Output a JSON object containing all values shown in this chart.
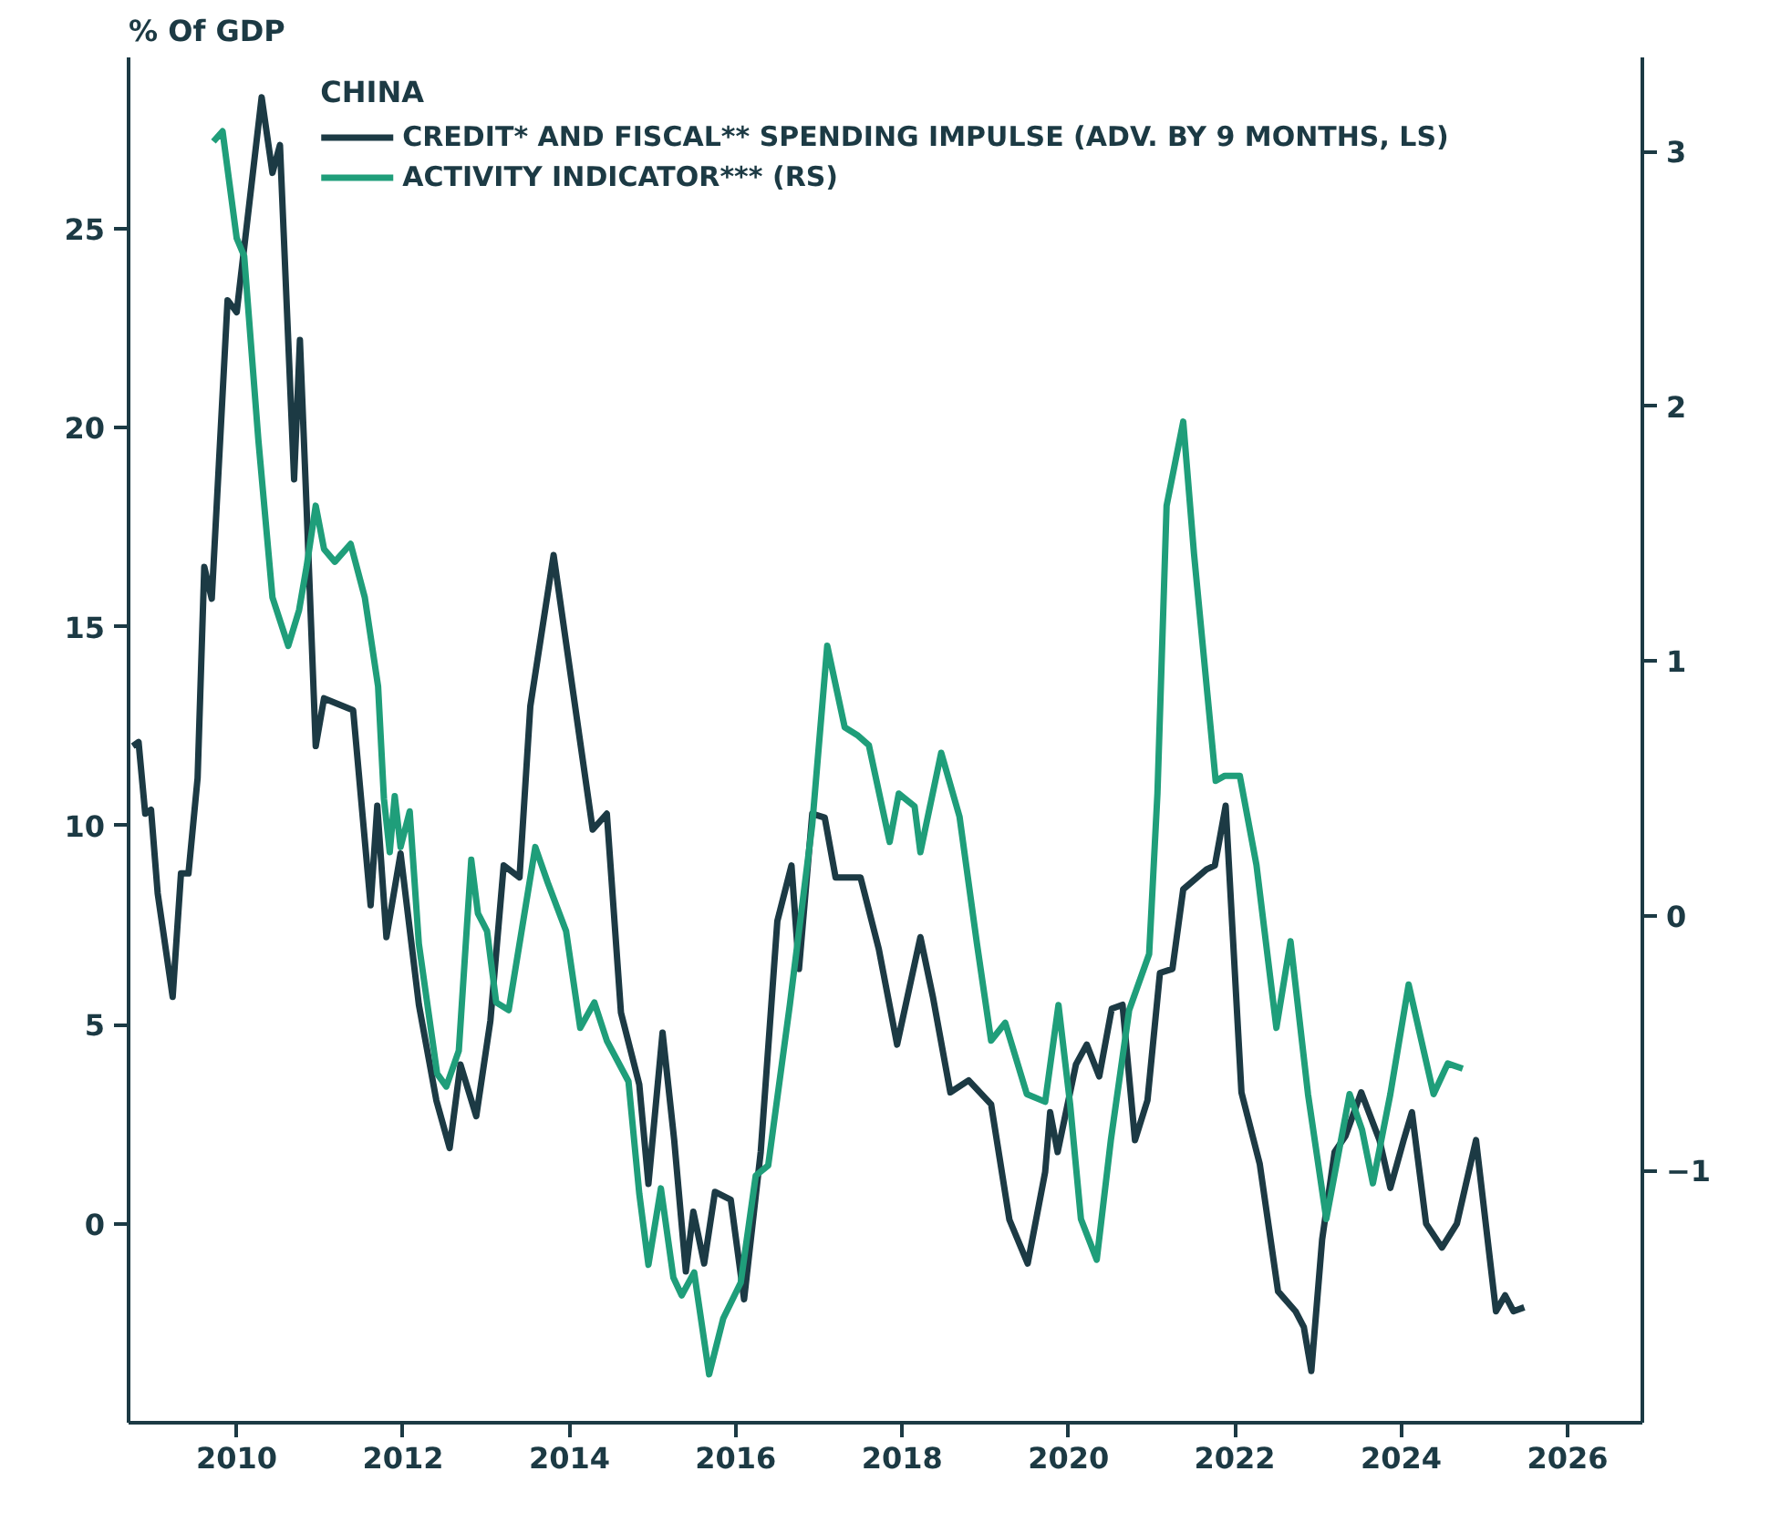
{
  "chart_data": {
    "type": "line",
    "ylabel": "% Of GDP",
    "legend_title": "CHINA",
    "legend": "top",
    "grid": false,
    "marker": "none",
    "line_style": "solid",
    "xlim": [
      2008.7,
      2026.9
    ],
    "xticks": [
      2010,
      2012,
      2014,
      2016,
      2018,
      2020,
      2022,
      2024,
      2026
    ],
    "ylim": [
      -5,
      29.3
    ],
    "yticks": [
      0,
      5,
      10,
      15,
      20,
      25
    ],
    "y2lim": [
      -1.99,
      3.37
    ],
    "y2ticks": [
      -1,
      0,
      1,
      2,
      3
    ],
    "series": [
      {
        "name": "CREDIT* AND FISCAL** SPENDING IMPULSE (ADV. BY 9 MONTHS, LS)",
        "color": "#1c3a44",
        "x": [
          2008.75,
          2008.82,
          2008.9,
          2008.97,
          2009.05,
          2009.23,
          2009.33,
          2009.42,
          2009.53,
          2009.61,
          2009.7,
          2009.89,
          2010.0,
          2010.3,
          2010.43,
          2010.52,
          2010.69,
          2010.76,
          2010.84,
          2010.95,
          2011.05,
          2011.4,
          2011.61,
          2011.69,
          2011.8,
          2011.97,
          2012.19,
          2012.4,
          2012.56,
          2012.69,
          2012.88,
          2013.05,
          2013.21,
          2013.4,
          2013.53,
          2013.81,
          2014.13,
          2014.28,
          2014.45,
          2014.62,
          2014.84,
          2014.95,
          2015.12,
          2015.26,
          2015.4,
          2015.49,
          2015.62,
          2015.75,
          2015.94,
          2016.1,
          2016.3,
          2016.5,
          2016.67,
          2016.76,
          2016.92,
          2017.07,
          2017.2,
          2017.5,
          2017.72,
          2017.94,
          2018.22,
          2018.37,
          2018.58,
          2018.8,
          2019.07,
          2019.29,
          2019.51,
          2019.72,
          2019.78,
          2019.87,
          2020.09,
          2020.22,
          2020.37,
          2020.52,
          2020.65,
          2020.8,
          2020.95,
          2021.1,
          2021.25,
          2021.38,
          2021.66,
          2021.76,
          2021.89,
          2022.08,
          2022.3,
          2022.52,
          2022.73,
          2022.83,
          2022.92,
          2023.05,
          2023.2,
          2023.33,
          2023.52,
          2023.74,
          2023.87,
          2024.03,
          2024.13,
          2024.3,
          2024.49,
          2024.67,
          2024.9,
          2025.14,
          2025.25,
          2025.35,
          2025.48
        ],
        "values": [
          12.0,
          12.1,
          10.3,
          10.4,
          8.3,
          5.7,
          8.8,
          8.8,
          11.2,
          16.5,
          15.7,
          23.2,
          22.9,
          28.3,
          26.4,
          27.1,
          18.7,
          22.2,
          18.0,
          12.0,
          13.2,
          12.9,
          8.0,
          10.5,
          7.2,
          9.3,
          5.5,
          3.1,
          1.9,
          4.0,
          2.7,
          5.1,
          9.0,
          8.7,
          13.0,
          16.8,
          12.1,
          9.9,
          10.3,
          5.3,
          3.5,
          1.0,
          4.8,
          2.1,
          -1.2,
          0.3,
          -1.0,
          0.8,
          0.6,
          -1.9,
          1.8,
          7.6,
          9.0,
          6.4,
          10.3,
          10.2,
          8.7,
          8.7,
          6.9,
          4.5,
          7.2,
          5.7,
          3.3,
          3.6,
          3.0,
          0.1,
          -1.0,
          1.3,
          2.8,
          1.8,
          4.0,
          4.5,
          3.7,
          5.4,
          5.5,
          2.1,
          3.1,
          6.3,
          6.4,
          8.4,
          8.9,
          9.0,
          10.5,
          3.3,
          1.5,
          -1.7,
          -2.2,
          -2.6,
          -3.7,
          -0.4,
          1.8,
          2.2,
          3.3,
          2.1,
          0.9,
          2.1,
          2.8,
          0.0,
          -0.6,
          0.0,
          2.1,
          -2.2,
          -1.8,
          -2.2,
          -2.1
        ]
      },
      {
        "name": "ACTIVITY INDICATOR*** (RS)",
        "color": "#1f9e7a",
        "axis": "y2",
        "x": [
          2009.72,
          2009.83,
          2010.0,
          2010.09,
          2010.26,
          2010.43,
          2010.62,
          2010.75,
          2010.84,
          2010.95,
          2011.05,
          2011.18,
          2011.37,
          2011.54,
          2011.7,
          2011.77,
          2011.84,
          2011.9,
          2011.97,
          2012.08,
          2012.19,
          2012.41,
          2012.52,
          2012.67,
          2012.82,
          2012.9,
          2013.01,
          2013.12,
          2013.27,
          2013.59,
          2013.74,
          2013.96,
          2014.13,
          2014.3,
          2014.45,
          2014.71,
          2014.84,
          2014.95,
          2015.1,
          2015.25,
          2015.35,
          2015.5,
          2015.68,
          2015.85,
          2016.06,
          2016.24,
          2016.39,
          2016.65,
          2016.92,
          2017.1,
          2017.31,
          2017.46,
          2017.6,
          2017.85,
          2017.96,
          2018.15,
          2018.22,
          2018.47,
          2018.69,
          2018.9,
          2019.07,
          2019.24,
          2019.5,
          2019.72,
          2019.88,
          2020.02,
          2020.15,
          2020.34,
          2020.51,
          2020.73,
          2020.97,
          2021.07,
          2021.18,
          2021.38,
          2021.51,
          2021.77,
          2021.88,
          2022.06,
          2022.26,
          2022.5,
          2022.67,
          2022.88,
          2023.1,
          2023.38,
          2023.53,
          2023.66,
          2023.87,
          2024.09,
          2024.39,
          2024.56,
          2024.74
        ],
        "values": [
          3.04,
          3.08,
          2.66,
          2.59,
          1.87,
          1.25,
          1.06,
          1.2,
          1.37,
          1.61,
          1.44,
          1.39,
          1.46,
          1.25,
          0.9,
          0.46,
          0.25,
          0.47,
          0.27,
          0.41,
          -0.11,
          -0.62,
          -0.67,
          -0.53,
          0.22,
          0.01,
          -0.06,
          -0.34,
          -0.37,
          0.27,
          0.13,
          -0.06,
          -0.44,
          -0.34,
          -0.49,
          -0.65,
          -1.09,
          -1.37,
          -1.07,
          -1.42,
          -1.49,
          -1.4,
          -1.8,
          -1.58,
          -1.44,
          -1.02,
          -0.98,
          -0.35,
          0.36,
          1.06,
          0.74,
          0.71,
          0.67,
          0.29,
          0.48,
          0.43,
          0.25,
          0.64,
          0.39,
          -0.11,
          -0.49,
          -0.42,
          -0.7,
          -0.73,
          -0.35,
          -0.74,
          -1.19,
          -1.35,
          -0.88,
          -0.37,
          -0.15,
          0.48,
          1.61,
          1.94,
          1.42,
          0.53,
          0.55,
          0.55,
          0.2,
          -0.44,
          -0.1,
          -0.7,
          -1.19,
          -0.7,
          -0.84,
          -1.05,
          -0.7,
          -0.27,
          -0.7,
          -0.58,
          -0.6
        ]
      }
    ]
  }
}
